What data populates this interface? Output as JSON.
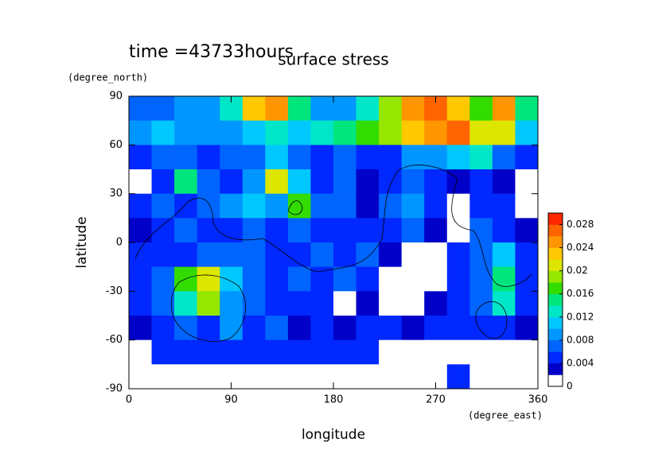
{
  "chart_data": {
    "type": "contour",
    "title": "surface stress",
    "subtitle": "time =43733hours",
    "x_label": "longitude",
    "y_label": "latitude",
    "x_unit": "(degree_east)",
    "y_unit": "(degree_north)",
    "xlim": [
      0,
      360
    ],
    "ylim": [
      -90,
      90
    ],
    "xticks": [
      0,
      90,
      180,
      270,
      360
    ],
    "yticks": [
      -90,
      -60,
      -30,
      0,
      30,
      60,
      90
    ],
    "x": [
      10,
      30,
      50,
      70,
      90,
      110,
      130,
      150,
      170,
      190,
      210,
      230,
      250,
      270,
      290,
      310,
      330,
      350
    ],
    "y": [
      82.5,
      67.5,
      52.5,
      37.5,
      22.5,
      7.5,
      -7.5,
      -22.5,
      -37.5,
      -52.5,
      -67.5,
      -82.5
    ],
    "z": [
      [
        0.006,
        0.006,
        0.008,
        0.008,
        0.012,
        0.022,
        0.024,
        0.014,
        0.008,
        0.008,
        0.012,
        0.018,
        0.024,
        0.026,
        0.022,
        0.016,
        0.024,
        0.014
      ],
      [
        0.008,
        0.01,
        0.008,
        0.008,
        0.008,
        0.01,
        0.012,
        0.01,
        0.012,
        0.014,
        0.016,
        0.018,
        0.022,
        0.024,
        0.026,
        0.02,
        0.02,
        0.01
      ],
      [
        0.004,
        0.006,
        0.006,
        0.004,
        0.006,
        0.006,
        0.01,
        0.006,
        0.004,
        0.006,
        0.004,
        0.004,
        0.008,
        0.008,
        0.01,
        0.012,
        0.006,
        0.004
      ],
      [
        0,
        0.004,
        0.014,
        0.006,
        0.004,
        0.008,
        0.02,
        0.01,
        0.004,
        0.006,
        0.002,
        0.004,
        0.006,
        0.004,
        0.002,
        0.004,
        0.002,
        0
      ],
      [
        0.004,
        0.006,
        0.004,
        0.006,
        0.008,
        0.01,
        0.008,
        0.016,
        0.006,
        0.006,
        0.002,
        0.006,
        0.008,
        0.004,
        0,
        0.004,
        0.004,
        0
      ],
      [
        0.002,
        0.004,
        0.006,
        0.004,
        0.004,
        0.006,
        0.004,
        0.006,
        0.004,
        0.004,
        0.004,
        0.004,
        0.006,
        0.002,
        0,
        0.006,
        0.004,
        0.002
      ],
      [
        0.004,
        0.004,
        0.004,
        0.006,
        0.006,
        0.006,
        0.004,
        0.004,
        0.006,
        0.004,
        0.006,
        0.002,
        0,
        0,
        0.004,
        0.006,
        0.01,
        0.004
      ],
      [
        0.004,
        0.006,
        0.016,
        0.02,
        0.01,
        0.006,
        0.004,
        0.006,
        0.004,
        0.006,
        0.004,
        0,
        0,
        0,
        0.004,
        0.006,
        0.014,
        0.004
      ],
      [
        0.004,
        0.006,
        0.012,
        0.018,
        0.008,
        0.006,
        0.004,
        0.004,
        0.004,
        0,
        0.002,
        0,
        0,
        0.002,
        0.004,
        0.006,
        0.012,
        0.004
      ],
      [
        0.002,
        0.004,
        0.006,
        0.004,
        0.008,
        0.004,
        0.006,
        0.002,
        0.004,
        0.002,
        0.004,
        0.004,
        0.002,
        0.004,
        0.004,
        0.004,
        0.004,
        0.002
      ],
      [
        0,
        0.004,
        0.004,
        0.004,
        0.004,
        0.004,
        0.004,
        0.004,
        0.004,
        0.004,
        0.004,
        0,
        0,
        0,
        0,
        0,
        0,
        0
      ],
      [
        0,
        0,
        0,
        0,
        0,
        0,
        0,
        0,
        0,
        0,
        0,
        0,
        0,
        0,
        0.004,
        0,
        0,
        0
      ]
    ],
    "levels": [
      0,
      0.002,
      0.004,
      0.006,
      0.008,
      0.01,
      0.012,
      0.014,
      0.016,
      0.018,
      0.02,
      0.022,
      0.024,
      0.026,
      0.028,
      0.03
    ],
    "colors": [
      "#ffffff",
      "#0000c8",
      "#0028ff",
      "#0064ff",
      "#0096ff",
      "#00c8ff",
      "#00e6c8",
      "#00e67d",
      "#32dc00",
      "#96e600",
      "#dce600",
      "#ffc800",
      "#ff9600",
      "#ff6400",
      "#ff2800"
    ],
    "colorbar_lim": [
      0,
      0.03
    ],
    "colorbar_ticks": [
      0,
      0.004,
      0.008,
      0.012,
      0.016,
      0.02,
      0.024,
      0.028
    ]
  }
}
